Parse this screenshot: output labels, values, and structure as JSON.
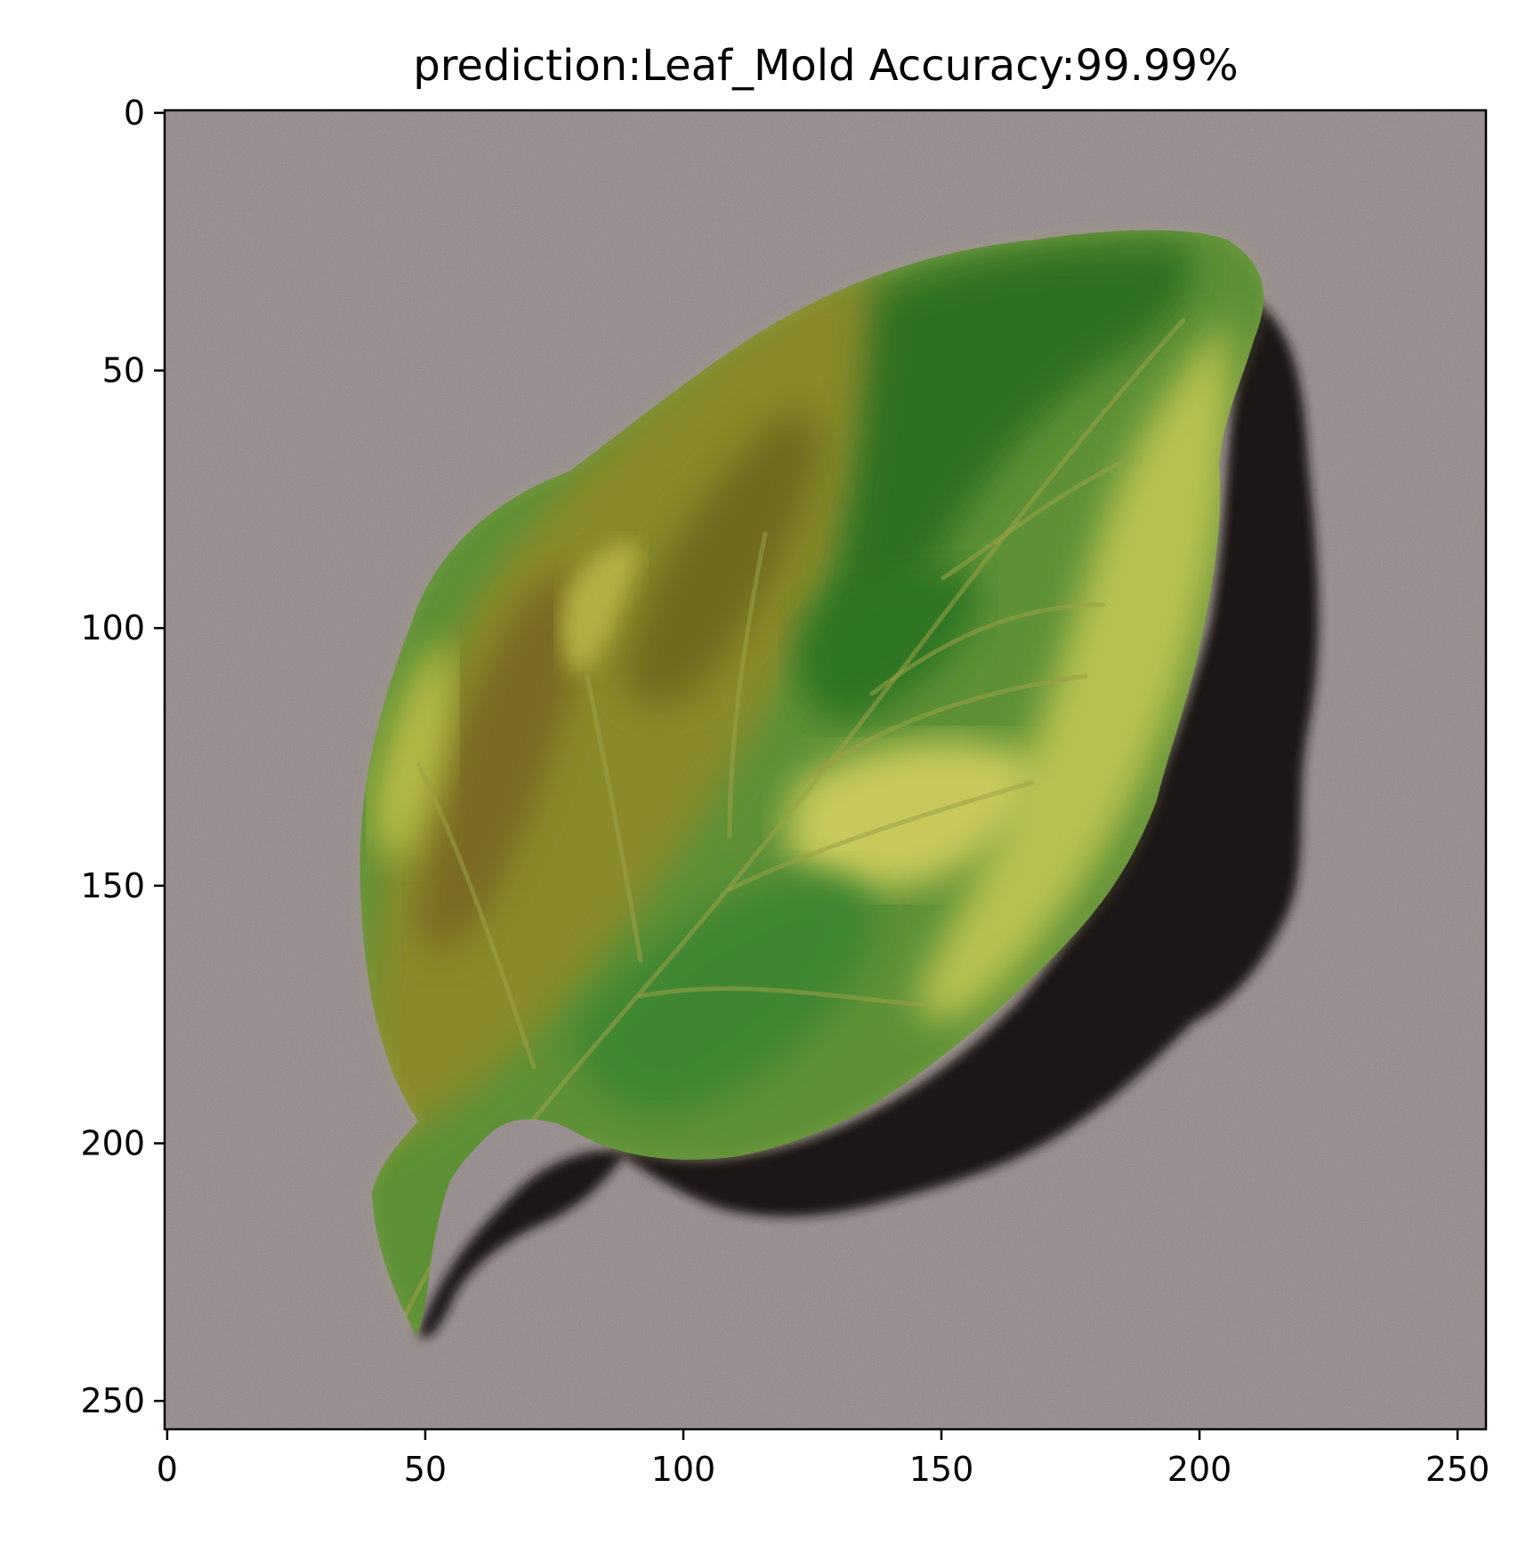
{
  "title": "prediction:Leaf_Mold Accuracy:99.99%",
  "image": {
    "subject": "leaf-photo",
    "background_color": "#8f8586",
    "colors": {
      "dark_green": "#2f6f22",
      "mid_green": "#4e8a33",
      "yellow_green": "#b6bf4c",
      "olive": "#7f7a26",
      "brown_spot": "#8a6a23",
      "shadow": "#1b1517"
    }
  },
  "axes": {
    "x_ticks": [
      "0",
      "50",
      "100",
      "150",
      "200",
      "250"
    ],
    "y_ticks": [
      "0",
      "50",
      "100",
      "150",
      "200",
      "250"
    ],
    "x_tick_values": [
      0,
      50,
      100,
      150,
      200,
      250
    ],
    "y_tick_values": [
      0,
      50,
      100,
      150,
      200,
      250
    ],
    "xlim": [
      -0.5,
      255.5
    ],
    "ylim": [
      255.5,
      -0.5
    ]
  }
}
